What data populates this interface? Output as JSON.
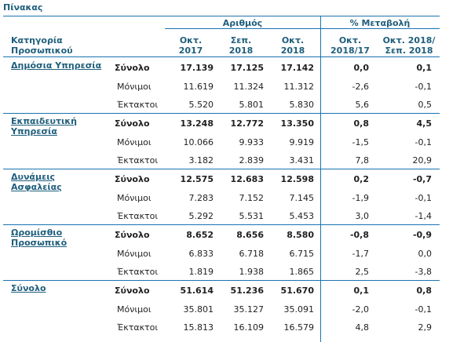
{
  "title": "Πίνακας",
  "header": {
    "category_line1": "Κατηγορία",
    "category_line2": "Προσωπικού",
    "group_count": "Αριθμός",
    "group_change": "% Μεταβολή",
    "cols": [
      {
        "l1": "Οκτ.",
        "l2": "2017"
      },
      {
        "l1": "Σεπ.",
        "l2": "2018"
      },
      {
        "l1": "Οκτ.",
        "l2": "2018"
      },
      {
        "l1": "Οκτ.",
        "l2": "2018/17"
      },
      {
        "l1": "Οκτ. 2018/",
        "l2": "Σεπ. 2018"
      }
    ]
  },
  "groups": [
    {
      "name_l1": "Δημόσια Υπηρεσία",
      "name_l2": "",
      "rows": [
        {
          "type": "Σύνολο",
          "v": [
            "17.139",
            "17.125",
            "17.142",
            "0,0",
            "0,1"
          ]
        },
        {
          "type": "Μόνιμοι",
          "v": [
            "11.619",
            "11.324",
            "11.312",
            "-2,6",
            "-0,1"
          ]
        },
        {
          "type": "Έκτακτοι",
          "v": [
            "5.520",
            "5.801",
            "5.830",
            "5,6",
            "0,5"
          ]
        }
      ]
    },
    {
      "name_l1": "Εκπαιδευτική",
      "name_l2": "Υπηρεσία",
      "rows": [
        {
          "type": "Σύνολο",
          "v": [
            "13.248",
            "12.772",
            "13.350",
            "0,8",
            "4,5"
          ]
        },
        {
          "type": "Μόνιμοι",
          "v": [
            "10.066",
            "9.933",
            "9.919",
            "-1,5",
            "-0,1"
          ]
        },
        {
          "type": "Έκτακτοι",
          "v": [
            "3.182",
            "2.839",
            "3.431",
            "7,8",
            "20,9"
          ]
        }
      ]
    },
    {
      "name_l1": "Δυνάμεις",
      "name_l2": "Ασφαλείας",
      "rows": [
        {
          "type": "Σύνολο",
          "v": [
            "12.575",
            "12.683",
            "12.598",
            "0,2",
            "-0,7"
          ]
        },
        {
          "type": "Μόνιμοι",
          "v": [
            "7.283",
            "7.152",
            "7.145",
            "-1,9",
            "-0,1"
          ]
        },
        {
          "type": "Έκτακτοι",
          "v": [
            "5.292",
            "5.531",
            "5.453",
            "3,0",
            "-1,4"
          ]
        }
      ]
    },
    {
      "name_l1": "Ωρομίσθιο",
      "name_l2": "Προσωπικό",
      "rows": [
        {
          "type": "Σύνολο",
          "v": [
            "8.652",
            "8.656",
            "8.580",
            "-0,8",
            "-0,9"
          ]
        },
        {
          "type": "Μόνιμοι",
          "v": [
            "6.833",
            "6.718",
            "6.715",
            "-1,7",
            "0,0"
          ]
        },
        {
          "type": "Έκτακτοι",
          "v": [
            "1.819",
            "1.938",
            "1.865",
            "2,5",
            "-3,8"
          ]
        }
      ]
    },
    {
      "name_l1": "Σύνολο",
      "name_l2": "",
      "rows": [
        {
          "type": "Σύνολο",
          "v": [
            "51.614",
            "51.236",
            "51.670",
            "0,1",
            "0,8"
          ]
        },
        {
          "type": "Μόνιμοι",
          "v": [
            "35.801",
            "35.127",
            "35.091",
            "-2,0",
            "-0,1"
          ]
        },
        {
          "type": "Έκτακτοι",
          "v": [
            "15.813",
            "16.109",
            "16.579",
            "4,8",
            "2,9"
          ]
        }
      ]
    }
  ]
}
